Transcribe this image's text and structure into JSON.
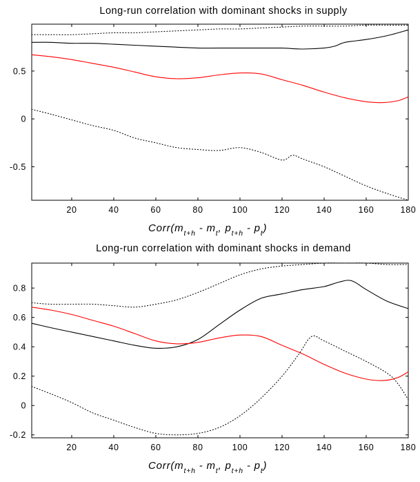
{
  "chart_data": [
    {
      "type": "line",
      "title": "Long-run correlation with dominant shocks in supply",
      "xlabel": {
        "pre": "Corr(m",
        "s1": "t+h",
        "a": " - m",
        "s2": "t",
        "b": ", p",
        "s3": "t+h",
        "c": " - p",
        "s4": "t",
        "post": ")"
      },
      "xlim": [
        1,
        180
      ],
      "ylim": [
        -0.85,
        0.99
      ],
      "xticks": [
        20,
        40,
        60,
        80,
        100,
        120,
        140,
        160,
        180
      ],
      "yticks": [
        {
          "value": 0.5,
          "label": "0.5"
        },
        {
          "value": 0,
          "label": "0"
        },
        {
          "value": -0.5,
          "label": "-0.5"
        }
      ],
      "series": [
        {
          "color": "#000000",
          "dash": "dotted",
          "x": [
            1,
            10,
            20,
            30,
            40,
            50,
            60,
            70,
            80,
            90,
            100,
            110,
            120,
            130,
            140,
            150,
            160,
            170,
            180
          ],
          "values": [
            0.88,
            0.88,
            0.88,
            0.89,
            0.9,
            0.9,
            0.91,
            0.92,
            0.93,
            0.94,
            0.94,
            0.95,
            0.96,
            0.97,
            0.97,
            0.97,
            0.98,
            0.98,
            0.98
          ]
        },
        {
          "color": "#000000",
          "dash": "solid",
          "x": [
            1,
            10,
            20,
            30,
            40,
            50,
            60,
            70,
            80,
            90,
            100,
            110,
            120,
            130,
            140,
            145,
            150,
            160,
            170,
            180
          ],
          "values": [
            0.8,
            0.8,
            0.79,
            0.79,
            0.78,
            0.77,
            0.76,
            0.75,
            0.74,
            0.74,
            0.74,
            0.74,
            0.74,
            0.73,
            0.74,
            0.76,
            0.8,
            0.83,
            0.87,
            0.93
          ]
        },
        {
          "color": "#ff0000",
          "dash": "solid",
          "x": [
            1,
            10,
            20,
            30,
            40,
            50,
            60,
            70,
            80,
            90,
            100,
            110,
            120,
            130,
            140,
            150,
            160,
            168,
            175,
            180
          ],
          "values": [
            0.67,
            0.65,
            0.62,
            0.58,
            0.54,
            0.49,
            0.44,
            0.42,
            0.43,
            0.46,
            0.48,
            0.47,
            0.41,
            0.35,
            0.28,
            0.22,
            0.18,
            0.17,
            0.19,
            0.23
          ]
        },
        {
          "color": "#000000",
          "dash": "dotted",
          "x": [
            1,
            10,
            20,
            30,
            40,
            50,
            60,
            70,
            80,
            90,
            100,
            110,
            120,
            125,
            130,
            140,
            150,
            160,
            170,
            180
          ],
          "values": [
            0.1,
            0.05,
            -0.01,
            -0.07,
            -0.12,
            -0.2,
            -0.25,
            -0.3,
            -0.32,
            -0.33,
            -0.3,
            -0.35,
            -0.43,
            -0.38,
            -0.42,
            -0.5,
            -0.6,
            -0.7,
            -0.78,
            -0.85
          ]
        }
      ]
    },
    {
      "type": "line",
      "title": "Long-run correlation with dominant shocks in demand",
      "xlabel": {
        "pre": "Corr(m",
        "s1": "t+h",
        "a": " - m",
        "s2": "t",
        "b": ", p",
        "s3": "t+h",
        "c": " - p",
        "s4": "t",
        "post": ")"
      },
      "xlim": [
        1,
        180
      ],
      "ylim": [
        -0.22,
        0.97
      ],
      "xticks": [
        20,
        40,
        60,
        80,
        100,
        120,
        140,
        160,
        180
      ],
      "yticks": [
        {
          "value": 0.8,
          "label": "0.8"
        },
        {
          "value": 0.6,
          "label": "0.6"
        },
        {
          "value": 0.4,
          "label": "0.4"
        },
        {
          "value": 0.2,
          "label": "0.2"
        },
        {
          "value": 0,
          "label": "0"
        },
        {
          "value": -0.2,
          "label": "-0.2"
        }
      ],
      "series": [
        {
          "color": "#000000",
          "dash": "dotted",
          "x": [
            1,
            10,
            20,
            30,
            40,
            50,
            60,
            70,
            80,
            90,
            100,
            110,
            120,
            130,
            140,
            150,
            160,
            170,
            180
          ],
          "values": [
            0.7,
            0.69,
            0.69,
            0.69,
            0.68,
            0.67,
            0.69,
            0.72,
            0.77,
            0.83,
            0.89,
            0.93,
            0.95,
            0.96,
            0.97,
            0.97,
            0.97,
            0.96,
            0.96
          ]
        },
        {
          "color": "#000000",
          "dash": "solid",
          "x": [
            1,
            10,
            20,
            30,
            40,
            50,
            60,
            70,
            80,
            90,
            100,
            110,
            120,
            130,
            140,
            147,
            153,
            160,
            170,
            180
          ],
          "values": [
            0.56,
            0.53,
            0.5,
            0.47,
            0.44,
            0.41,
            0.39,
            0.4,
            0.45,
            0.55,
            0.65,
            0.73,
            0.76,
            0.79,
            0.81,
            0.84,
            0.85,
            0.79,
            0.71,
            0.66
          ]
        },
        {
          "color": "#ff0000",
          "dash": "solid",
          "x": [
            1,
            10,
            20,
            30,
            40,
            50,
            60,
            70,
            80,
            90,
            100,
            110,
            120,
            130,
            140,
            150,
            160,
            168,
            175,
            180
          ],
          "values": [
            0.67,
            0.65,
            0.62,
            0.58,
            0.54,
            0.49,
            0.44,
            0.42,
            0.43,
            0.46,
            0.48,
            0.47,
            0.41,
            0.35,
            0.28,
            0.22,
            0.18,
            0.17,
            0.19,
            0.23
          ]
        },
        {
          "color": "#000000",
          "dash": "dotted",
          "x": [
            1,
            10,
            20,
            30,
            40,
            50,
            60,
            70,
            80,
            90,
            100,
            110,
            120,
            128,
            134,
            140,
            150,
            160,
            170,
            175,
            180
          ],
          "values": [
            0.13,
            0.08,
            0.02,
            -0.05,
            -0.1,
            -0.15,
            -0.19,
            -0.2,
            -0.19,
            -0.15,
            -0.07,
            0.05,
            0.2,
            0.35,
            0.47,
            0.44,
            0.37,
            0.3,
            0.22,
            0.15,
            0.04
          ]
        }
      ]
    }
  ]
}
